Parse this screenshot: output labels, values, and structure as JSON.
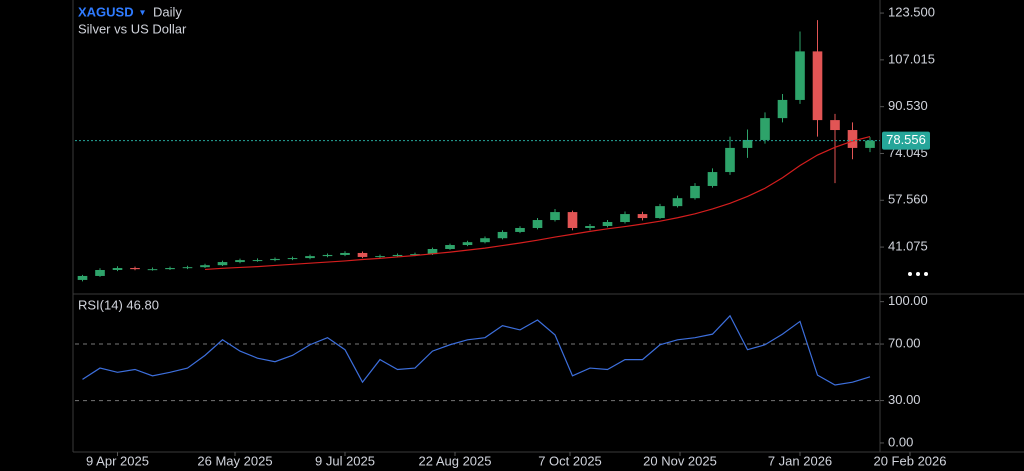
{
  "chart_data": {
    "type": "candlestick",
    "title": "XAGUSD",
    "interval": "Daily",
    "subtitle": "Silver vs US Dollar",
    "x": [
      "2025-03-26",
      "2025-04-02",
      "2025-04-09",
      "2025-04-16",
      "2025-04-23",
      "2025-04-30",
      "2025-05-07",
      "2025-05-14",
      "2025-05-21",
      "2025-05-28",
      "2025-06-04",
      "2025-06-11",
      "2025-06-18",
      "2025-06-25",
      "2025-07-02",
      "2025-07-09",
      "2025-07-16",
      "2025-07-23",
      "2025-07-30",
      "2025-08-06",
      "2025-08-13",
      "2025-08-20",
      "2025-08-27",
      "2025-09-03",
      "2025-09-10",
      "2025-09-17",
      "2025-09-24",
      "2025-10-01",
      "2025-10-08",
      "2025-10-15",
      "2025-10-22",
      "2025-10-29",
      "2025-11-05",
      "2025-11-12",
      "2025-11-19",
      "2025-11-26",
      "2025-12-03",
      "2025-12-10",
      "2025-12-17",
      "2025-12-24",
      "2025-12-31",
      "2026-01-07",
      "2026-01-14",
      "2026-01-21",
      "2026-01-28",
      "2026-02-04"
    ],
    "xlim": [
      "2025-03-23",
      "2026-02-08"
    ],
    "xticks": [
      {
        "value": "2025-04-09",
        "label": "9 Apr 2025"
      },
      {
        "value": "2025-05-26",
        "label": "26 May 2025"
      },
      {
        "value": "2025-07-09",
        "label": "9 Jul 2025"
      },
      {
        "value": "2025-08-22",
        "label": "22 Aug 2025"
      },
      {
        "value": "2025-10-07",
        "label": "7 Oct 2025"
      },
      {
        "value": "2025-11-20",
        "label": "20 Nov 2025"
      },
      {
        "value": "2026-01-07",
        "label": "7 Jan 2026"
      },
      {
        "value": "2026-02-20",
        "label": "20 Feb 2026"
      }
    ],
    "open": [
      29.5,
      30.9,
      33.0,
      33.7,
      33.3,
      33.3,
      33.7,
      34.0,
      34.7,
      35.8,
      36.5,
      36.5,
      36.9,
      37.2,
      37.9,
      38.3,
      39.0,
      37.6,
      37.9,
      38.3,
      38.6,
      40.4,
      41.8,
      42.8,
      44.2,
      46.4,
      47.8,
      50.6,
      53.4,
      47.8,
      48.5,
      49.9,
      52.7,
      51.3,
      55.5,
      58.3,
      62.6,
      67.5,
      76.0,
      78.8,
      86.5,
      92.9,
      110.0,
      85.8,
      82.3,
      76.0
    ],
    "high": [
      31.3,
      33.6,
      34.3,
      34.2,
      33.9,
      34.2,
      34.5,
      35.2,
      36.3,
      37.0,
      37.1,
      37.4,
      37.7,
      38.4,
      38.8,
      39.6,
      39.5,
      38.4,
      38.8,
      39.1,
      40.9,
      42.3,
      43.3,
      44.8,
      47.0,
      48.4,
      51.3,
      54.5,
      53.9,
      49.2,
      50.6,
      53.6,
      53.5,
      56.3,
      59.2,
      63.6,
      68.8,
      80.0,
      82.5,
      88.5,
      95.0,
      117.0,
      121.0,
      88.0,
      85.0,
      79.8
    ],
    "low": [
      29.0,
      30.6,
      32.6,
      32.9,
      32.8,
      33.0,
      33.3,
      33.7,
      34.4,
      35.4,
      35.9,
      36.1,
      36.5,
      36.8,
      37.5,
      37.9,
      37.2,
      37.2,
      37.5,
      37.9,
      38.3,
      40.1,
      41.4,
      42.4,
      43.8,
      46.0,
      47.3,
      50.1,
      47.0,
      47.0,
      48.0,
      49.4,
      50.5,
      51.0,
      55.0,
      57.8,
      62.0,
      66.5,
      72.5,
      77.5,
      85.0,
      91.5,
      80.0,
      63.6,
      72.0,
      74.5
    ],
    "close": [
      30.9,
      33.0,
      33.7,
      33.3,
      33.3,
      33.7,
      34.0,
      34.7,
      35.8,
      36.5,
      36.5,
      36.9,
      37.2,
      37.9,
      38.3,
      39.0,
      37.6,
      37.9,
      38.3,
      38.6,
      40.4,
      41.8,
      42.8,
      44.2,
      46.4,
      47.8,
      50.6,
      53.4,
      47.8,
      48.5,
      49.9,
      52.7,
      51.3,
      55.5,
      58.3,
      62.6,
      67.5,
      76.0,
      78.8,
      86.5,
      92.9,
      110.0,
      85.8,
      82.3,
      76.0,
      78.556
    ],
    "up_color": "#2ea36a",
    "down_color": "#e25555",
    "last_price_label": "78.556",
    "last_price_color": "#26a69a",
    "moving_average": {
      "color": "#d41e1e",
      "values": [
        null,
        null,
        null,
        null,
        null,
        null,
        null,
        33.2,
        33.6,
        33.9,
        34.2,
        34.6,
        35.0,
        35.4,
        35.8,
        36.2,
        36.7,
        37.1,
        37.6,
        38.1,
        38.7,
        39.3,
        40.0,
        40.7,
        41.6,
        42.5,
        43.5,
        44.6,
        45.6,
        46.6,
        47.5,
        48.3,
        49.2,
        50.2,
        51.4,
        52.8,
        54.5,
        56.5,
        58.9,
        61.8,
        65.5,
        69.8,
        73.5,
        76.2,
        78.4,
        80.0
      ]
    },
    "ylim": [
      24.9,
      128.1
    ],
    "yticks": [
      {
        "value": 41.075,
        "label": "41.075"
      },
      {
        "value": 57.56,
        "label": "57.560"
      },
      {
        "value": 74.045,
        "label": "74.045"
      },
      {
        "value": 90.53,
        "label": "90.530"
      },
      {
        "value": 107.015,
        "label": "107.015"
      },
      {
        "value": 123.5,
        "label": "123.500"
      }
    ],
    "indicator": {
      "type": "line",
      "label": "RSI(14) 46.80",
      "color": "#3d6fdc",
      "values": [
        45,
        53,
        50,
        52,
        47.5,
        50,
        53,
        62,
        73,
        65,
        60,
        57.5,
        62,
        69.5,
        74.5,
        66,
        43,
        59,
        52,
        53,
        65,
        69.5,
        73,
        74.5,
        83,
        80,
        87,
        76.5,
        47.5,
        53,
        52,
        59,
        59,
        69.5,
        73,
        74.5,
        77,
        90,
        66,
        69.5,
        77,
        86,
        48,
        41,
        43,
        46.8
      ],
      "ylim": [
        -6.4,
        104
      ],
      "yticks": [
        {
          "value": 0,
          "label": "0.00"
        },
        {
          "value": 30,
          "label": "30.00"
        },
        {
          "value": 70,
          "label": "70.00"
        },
        {
          "value": 100,
          "label": "100.00"
        }
      ]
    }
  }
}
